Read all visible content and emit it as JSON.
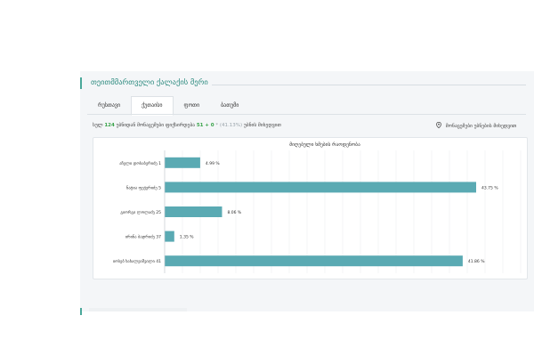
{
  "section": {
    "title": "თეითმმართველი ქალაქის მერი"
  },
  "tabs": [
    {
      "label": "რუსთავი",
      "active": false
    },
    {
      "label": "ქუთაისი",
      "active": true
    },
    {
      "label": "ფოთი",
      "active": false
    },
    {
      "label": "ბათუმი",
      "active": false
    }
  ],
  "stats": {
    "prefix": "სულ",
    "total": "124",
    "middle": "უბნიდან მონაცემები ფიქსირდება",
    "counted": "51",
    "plus": "+ 0",
    "muted": "* (41.13%)",
    "suffix": "უბნის მიხედვით"
  },
  "locate_button": {
    "label": "მონაცემები უბნების მიხედვით",
    "icon": "map-pin-icon"
  },
  "colors": {
    "accent": "#4aa89a",
    "bar": "#5aaab3"
  },
  "chart_data": {
    "type": "bar",
    "orientation": "horizontal",
    "title": "მიღებული ხმების რაოდენობა",
    "categories": [
      "აჩელი დოსაბერიძე 1",
      "ნატია ფეჟერიძე 5",
      "გიორგი ლოლაძე 25",
      "ირინა ბადრიძე 37",
      "იოსებ ხახალეიშვილი 41"
    ],
    "values": [
      4.99,
      43.75,
      8.06,
      1.35,
      41.86
    ],
    "value_labels": [
      "4.99 %",
      "43.75 %",
      "8.06 %",
      "1.35 %",
      "41.86 %"
    ],
    "xlim": [
      0,
      50
    ],
    "grid": true
  }
}
